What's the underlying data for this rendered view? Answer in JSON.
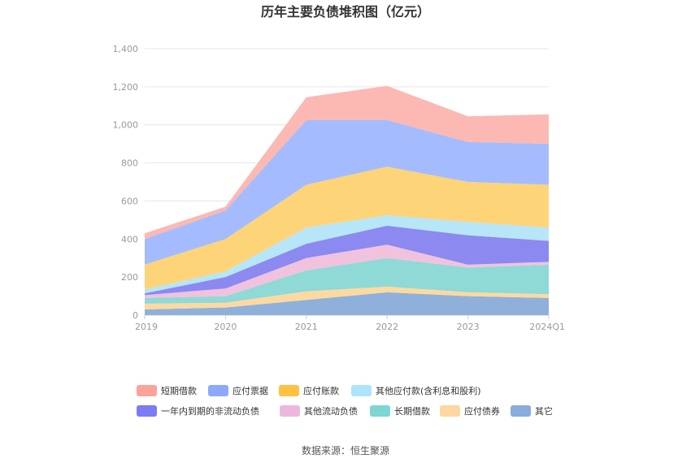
{
  "chart_data": {
    "type": "area",
    "stacked": true,
    "title": "历年主要负债堆积图（亿元）",
    "categories": [
      "2019",
      "2020",
      "2021",
      "2022",
      "2023",
      "2024Q1"
    ],
    "ylim": [
      0,
      1400
    ],
    "yticks": [
      "0",
      "200",
      "400",
      "600",
      "800",
      "1,000",
      "1,200",
      "1,400"
    ],
    "series": [
      {
        "name": "其它",
        "color": "#8fb0db",
        "values": [
          30,
          40,
          80,
          120,
          100,
          90
        ]
      },
      {
        "name": "应付债券",
        "color": "#fdd9a0",
        "values": [
          30,
          25,
          45,
          30,
          20,
          20
        ]
      },
      {
        "name": "长期借款",
        "color": "#8fd9d6",
        "values": [
          30,
          35,
          110,
          150,
          130,
          155
        ]
      },
      {
        "name": "其他流动负债",
        "color": "#f0c2dd",
        "values": [
          15,
          40,
          65,
          70,
          15,
          15
        ]
      },
      {
        "name": "一年内到期的非流动负债",
        "color": "#8c89f0",
        "values": [
          10,
          60,
          75,
          100,
          155,
          110
        ]
      },
      {
        "name": "其他应付款(含利息和股利)",
        "color": "#b6e6f8",
        "values": [
          20,
          30,
          85,
          55,
          70,
          70
        ]
      },
      {
        "name": "应付账款",
        "color": "#fed479",
        "values": [
          130,
          170,
          225,
          255,
          210,
          225
        ]
      },
      {
        "name": "应付票据",
        "color": "#a4bcfd",
        "values": [
          135,
          150,
          340,
          245,
          210,
          215
        ]
      },
      {
        "name": "短期借款",
        "color": "#fcb8b2",
        "values": [
          30,
          20,
          120,
          180,
          135,
          155
        ]
      }
    ],
    "legend_swatch_colors": [
      "#fba398",
      "#8da8fc",
      "#fdc242",
      "#aee4fa",
      "#7b7bf5",
      "#ebb8dd",
      "#7ed6d4",
      "#fed7a0",
      "#88acdb"
    ],
    "legend_order": [
      "短期借款",
      "应付票据",
      "应付账款",
      "其他应付款(含利息和股利)",
      "一年内到期的非流动负债",
      "其他流动负债",
      "长期借款",
      "应付债券",
      "其它"
    ],
    "source": "数据来源：恒生聚源"
  }
}
